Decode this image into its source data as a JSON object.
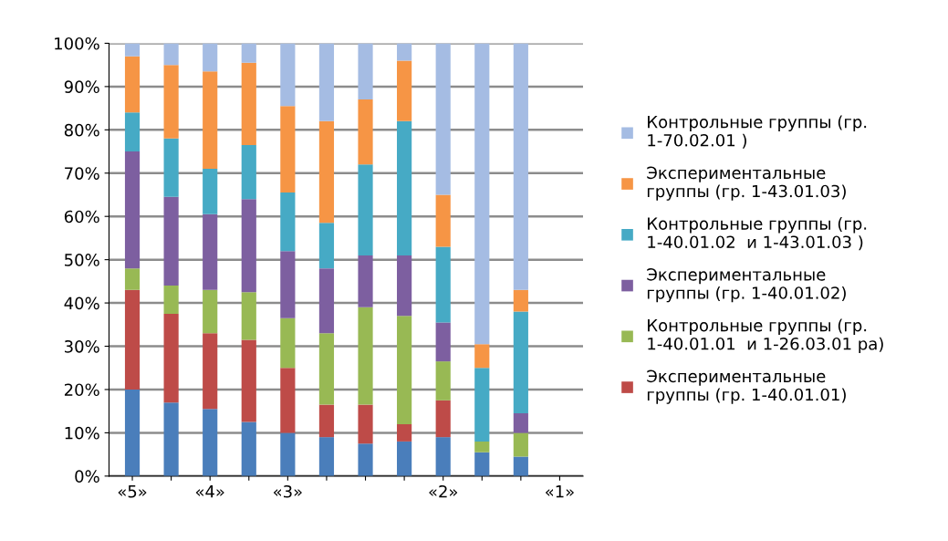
{
  "chart_data": {
    "type": "bar",
    "stacked": true,
    "categories": [
      "«5»",
      null,
      "«4»",
      null,
      "«3»",
      null,
      null,
      null,
      "«2»",
      null,
      null,
      "«1»"
    ],
    "series": [
      {
        "color": "#4a7ebb",
        "values": [
          20,
          17,
          15.5,
          12.5,
          10,
          9,
          7.5,
          8,
          9,
          5.5,
          4.5,
          0
        ]
      },
      {
        "name": "Экспериментальные\nгруппы (гр. 1-40.01.01)",
        "color": "#be4b48",
        "values": [
          23,
          20.5,
          17.5,
          19,
          15,
          7.5,
          9,
          4,
          8.5,
          0,
          0,
          0
        ]
      },
      {
        "name": "Контрольные группы (гр.\n1-40.01.01  и 1-26.03.01 ра)",
        "color": "#98b954",
        "values": [
          5,
          6.5,
          10,
          11,
          11.5,
          16.5,
          22.5,
          25,
          9,
          2.5,
          5.5,
          0
        ]
      },
      {
        "name": "Экспериментальные\nгруппы (гр. 1-40.01.02)",
        "color": "#7d5fa0",
        "values": [
          27,
          20.5,
          17.5,
          21.5,
          15.5,
          15,
          12,
          14,
          9,
          0,
          4.5,
          0
        ]
      },
      {
        "name": "Контрольные группы (гр.\n1-40.01.02  и 1-43.01.03 )",
        "color": "#46aac5",
        "values": [
          9,
          13.5,
          10.5,
          12.5,
          13.5,
          10.5,
          21,
          31,
          17.5,
          17,
          23.5,
          0
        ]
      },
      {
        "name": "Экспериментальные\nгруппы (гр. 1-43.01.03)",
        "color": "#f69545",
        "values": [
          13,
          17,
          22.5,
          19,
          20,
          23.5,
          15,
          14,
          12,
          5.5,
          5,
          0
        ]
      },
      {
        "name": "Контрольные группы (гр.\n1-70.02.01 )",
        "color": "#a5bce3",
        "values": [
          3,
          5,
          6.5,
          4.5,
          14.5,
          18,
          13,
          4,
          35,
          69.5,
          57,
          0
        ]
      }
    ],
    "ylim": [
      0,
      100
    ],
    "yticks": [
      {
        "value": 0,
        "label": "0%"
      },
      {
        "value": 10,
        "label": "10%"
      },
      {
        "value": 20,
        "label": "20%"
      },
      {
        "value": 30,
        "label": "30%"
      },
      {
        "value": 40,
        "label": "40%"
      },
      {
        "value": 50,
        "label": "50%"
      },
      {
        "value": 60,
        "label": "60%"
      },
      {
        "value": 70,
        "label": "70%"
      },
      {
        "value": 80,
        "label": "80%"
      },
      {
        "value": 90,
        "label": "90%"
      },
      {
        "value": 100,
        "label": "100%"
      }
    ],
    "grid": "y",
    "legend": "right"
  }
}
